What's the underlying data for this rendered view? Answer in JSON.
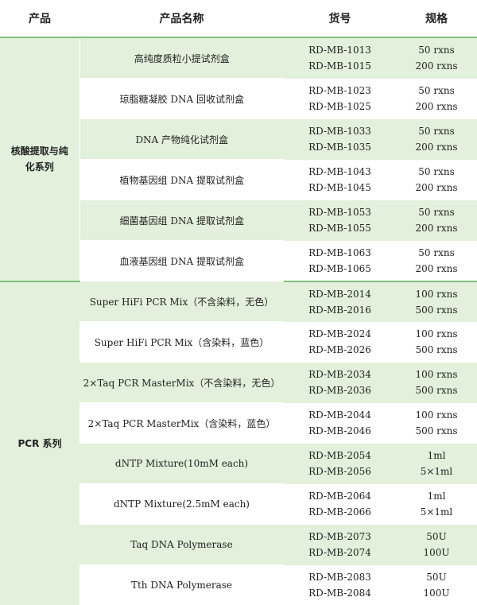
{
  "header": {
    "col_category": "产品",
    "col_name": "产品名称",
    "col_code": "货号",
    "col_spec": "规格"
  },
  "groups": [
    {
      "category_line1": "核酸提取与纯",
      "category_line2": "化系列",
      "rows": [
        {
          "name": "高纯度质粒小提试剂盒",
          "code1": "RD-MB-1013",
          "code2": "RD-MB-1015",
          "spec1": "50 rxns",
          "spec2": "200 rxns"
        },
        {
          "name": "琼脂糖凝胶 DNA 回收试剂盒",
          "code1": "RD-MB-1023",
          "code2": "RD-MB-1025",
          "spec1": "50 rxns",
          "spec2": "200 rxns"
        },
        {
          "name": "DNA 产物纯化试剂盒",
          "code1": "RD-MB-1033",
          "code2": "RD-MB-1035",
          "spec1": "50 rxns",
          "spec2": "200 rxns"
        },
        {
          "name": "植物基因组 DNA 提取试剂盒",
          "code1": "RD-MB-1043",
          "code2": "RD-MB-1045",
          "spec1": "50 rxns",
          "spec2": "200 rxns"
        },
        {
          "name": "细菌基因组 DNA 提取试剂盒",
          "code1": "RD-MB-1053",
          "code2": "RD-MB-1055",
          "spec1": "50 rxns",
          "spec2": "200 rxns"
        },
        {
          "name": "血液基因组 DNA 提取试剂盒",
          "code1": "RD-MB-1063",
          "code2": "RD-MB-1065",
          "spec1": "50 rxns",
          "spec2": "200 rxns"
        }
      ]
    },
    {
      "category_line1": "PCR 系列",
      "category_line2": "",
      "rows": [
        {
          "name": "Super HiFi PCR Mix（不含染料，无色）",
          "code1": "RD-MB-2014",
          "code2": "RD-MB-2016",
          "spec1": "100 rxns",
          "spec2": "500 rxns"
        },
        {
          "name": "Super HiFi PCR Mix（含染料，蓝色）",
          "code1": "RD-MB-2024",
          "code2": "RD-MB-2026",
          "spec1": "100 rxns",
          "spec2": "500 rxns"
        },
        {
          "name": "2×Taq PCR MasterMix（不含染料，无色）",
          "code1": "RD-MB-2034",
          "code2": "RD-MB-2036",
          "spec1": "100 rxns",
          "spec2": "500 rxns"
        },
        {
          "name": "2×Taq PCR MasterMix（含染料，蓝色）",
          "code1": "RD-MB-2044",
          "code2": "RD-MB-2046",
          "spec1": "100 rxns",
          "spec2": "500 rxns"
        },
        {
          "name": "dNTP Mixture(10mM each)",
          "code1": "RD-MB-2054",
          "code2": "RD-MB-2056",
          "spec1": "1ml",
          "spec2": "5×1ml"
        },
        {
          "name": "dNTP Mixture(2.5mM each)",
          "code1": "RD-MB-2064",
          "code2": "RD-MB-2066",
          "spec1": "1ml",
          "spec2": "5×1ml"
        },
        {
          "name": "Taq DNA Polymerase",
          "code1": "RD-MB-2073",
          "code2": "RD-MB-2074",
          "spec1": "50U",
          "spec2": "100U"
        },
        {
          "name": "Tth DNA Polymerase",
          "code1": "RD-MB-2083",
          "code2": "RD-MB-2084",
          "spec1": "50U",
          "spec2": "100U"
        }
      ]
    }
  ]
}
